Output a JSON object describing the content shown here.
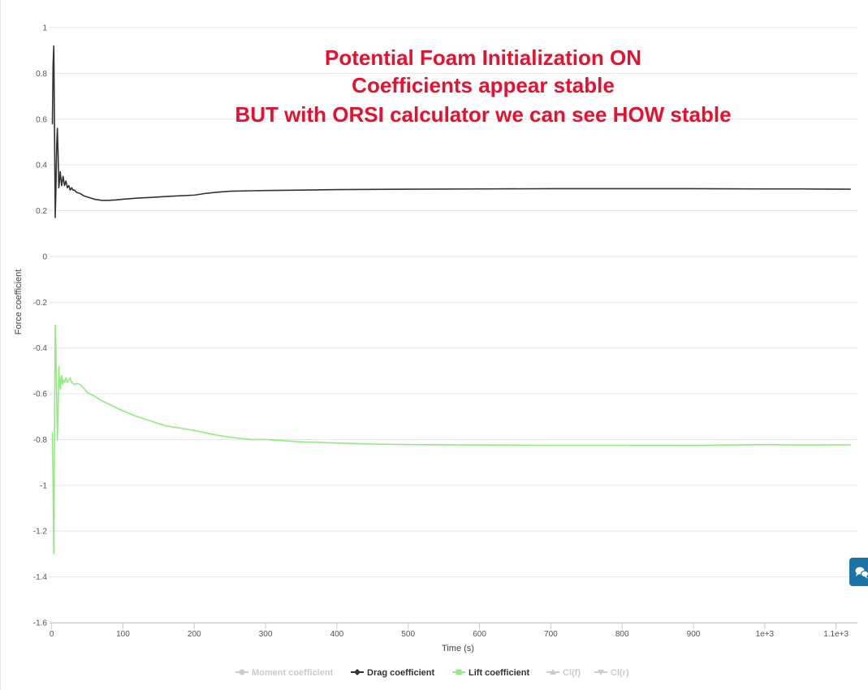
{
  "chart_data": {
    "type": "line",
    "title": "",
    "annotation": [
      "Potential Foam Initialization ON",
      "Coefficients appear stable",
      "BUT with ORSI calculator we can see HOW stable"
    ],
    "xlabel": "Time (s)",
    "ylabel": "Force coefficient",
    "xlim": [
      -3,
      1130
    ],
    "ylim": [
      -1.6,
      1
    ],
    "x_ticks": [
      0,
      100,
      200,
      300,
      400,
      500,
      600,
      700,
      800,
      900,
      1000,
      1100
    ],
    "x_tick_labels": [
      "0",
      "100",
      "200",
      "300",
      "400",
      "500",
      "600",
      "700",
      "800",
      "900",
      "1e+3",
      "1.1e+3"
    ],
    "y_ticks": [
      1,
      0.8,
      0.6,
      0.4,
      0.2,
      0,
      -0.2,
      -0.4,
      -0.6,
      -0.8,
      -1,
      -1.2,
      -1.4,
      -1.6
    ],
    "y_tick_labels": [
      "1",
      "0.8",
      "0.6",
      "0.4",
      "0.2",
      "0",
      "-0.2",
      "-0.4",
      "-0.6",
      "-0.8",
      "-1",
      "-1.2",
      "-1.4",
      "-1.6"
    ],
    "grid": true,
    "legend_position": "bottom",
    "series": [
      {
        "name": "Moment coefficient",
        "visible": false,
        "color": "#cccccc",
        "marker": "circle",
        "x": [],
        "y": []
      },
      {
        "name": "Drag coefficient",
        "visible": true,
        "color": "#333333",
        "marker": "diamond",
        "x": [
          1,
          2,
          3,
          4,
          5,
          6,
          7,
          8,
          9,
          10,
          11,
          12,
          13,
          14,
          15,
          16,
          18,
          20,
          22,
          24,
          26,
          28,
          30,
          32,
          35,
          40,
          45,
          50,
          55,
          60,
          70,
          80,
          90,
          100,
          120,
          140,
          160,
          180,
          200,
          215,
          230,
          250,
          280,
          300,
          350,
          400,
          450,
          500,
          600,
          700,
          800,
          900,
          1000,
          1050,
          1120
        ],
        "y": [
          0.58,
          0.84,
          0.92,
          0.55,
          0.17,
          0.3,
          0.48,
          0.56,
          0.45,
          0.3,
          0.33,
          0.37,
          0.34,
          0.31,
          0.33,
          0.35,
          0.31,
          0.33,
          0.3,
          0.31,
          0.29,
          0.3,
          0.29,
          0.29,
          0.28,
          0.275,
          0.265,
          0.26,
          0.255,
          0.25,
          0.245,
          0.245,
          0.247,
          0.25,
          0.255,
          0.258,
          0.262,
          0.265,
          0.268,
          0.275,
          0.28,
          0.285,
          0.287,
          0.288,
          0.29,
          0.292,
          0.293,
          0.294,
          0.295,
          0.296,
          0.296,
          0.296,
          0.295,
          0.295,
          0.294
        ]
      },
      {
        "name": "Lift coefficient",
        "visible": true,
        "color": "#90ed7d",
        "marker": "square",
        "x": [
          1,
          2,
          3,
          4,
          5,
          6,
          7,
          8,
          9,
          10,
          11,
          12,
          13,
          14,
          15,
          16,
          18,
          20,
          22,
          24,
          26,
          28,
          30,
          32,
          35,
          40,
          45,
          50,
          60,
          70,
          80,
          90,
          100,
          120,
          140,
          160,
          180,
          200,
          215,
          230,
          250,
          280,
          300,
          350,
          400,
          450,
          500,
          600,
          700,
          800,
          900,
          1000,
          1050,
          1120
        ],
        "y": [
          -0.77,
          -1.0,
          -1.3,
          -0.78,
          -0.3,
          -0.42,
          -0.62,
          -0.8,
          -0.68,
          -0.48,
          -0.55,
          -0.58,
          -0.53,
          -0.52,
          -0.56,
          -0.54,
          -0.55,
          -0.53,
          -0.55,
          -0.54,
          -0.53,
          -0.55,
          -0.555,
          -0.56,
          -0.555,
          -0.56,
          -0.575,
          -0.595,
          -0.61,
          -0.63,
          -0.645,
          -0.66,
          -0.675,
          -0.7,
          -0.72,
          -0.74,
          -0.75,
          -0.76,
          -0.77,
          -0.78,
          -0.79,
          -0.8,
          -0.8,
          -0.81,
          -0.815,
          -0.82,
          -0.822,
          -0.824,
          -0.825,
          -0.825,
          -0.826,
          -0.822,
          -0.824,
          -0.823
        ]
      },
      {
        "name": "Cl(f)",
        "visible": false,
        "color": "#cccccc",
        "marker": "triangle",
        "x": [],
        "y": []
      },
      {
        "name": "Cl(r)",
        "visible": false,
        "color": "#cccccc",
        "marker": "triangle-down",
        "x": [],
        "y": []
      }
    ]
  },
  "colors": {
    "annotation": "#e8102e",
    "grid": "#e6e6e6",
    "chat_button": "#1b73a6"
  },
  "chat_button": {
    "icon": "chat-bubbles-icon"
  }
}
